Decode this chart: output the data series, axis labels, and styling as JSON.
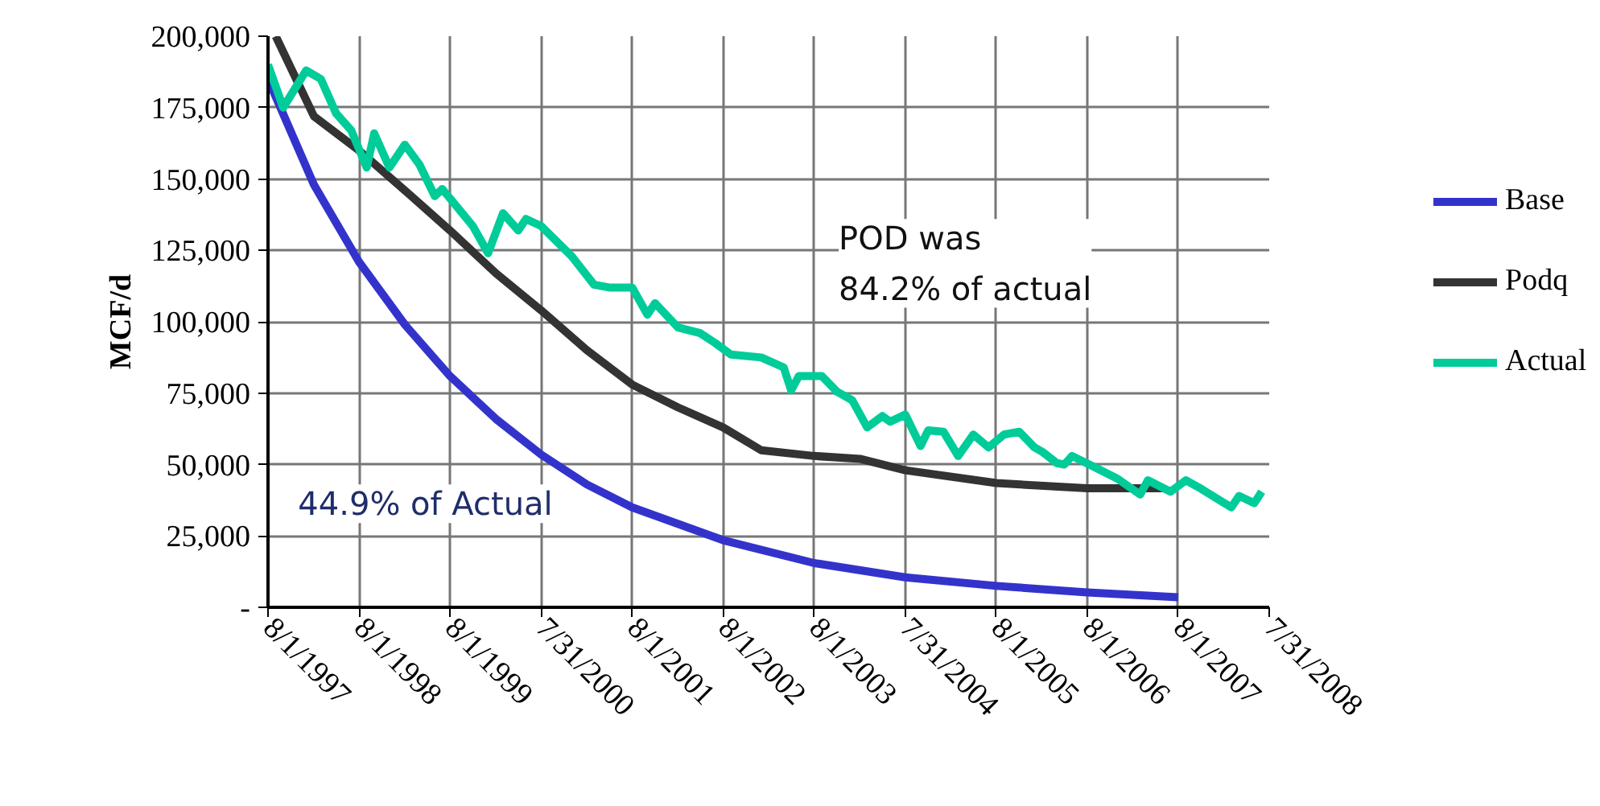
{
  "chart_data": {
    "type": "line",
    "ylabel": "MCF/d",
    "grid": true,
    "legend": "right",
    "line_style": "solid",
    "marker": "none",
    "xlim": [
      "1997-08-01",
      "2008-07-31"
    ],
    "xticks": [
      {
        "value": "1997-08-01",
        "label": "8/1/1997"
      },
      {
        "value": "1998-08-01",
        "label": "8/1/1998"
      },
      {
        "value": "1999-08-01",
        "label": "8/1/1999"
      },
      {
        "value": "2000-07-31",
        "label": "7/31/2000"
      },
      {
        "value": "2001-08-01",
        "label": "8/1/2001"
      },
      {
        "value": "2002-08-01",
        "label": "8/1/2002"
      },
      {
        "value": "2003-08-01",
        "label": "8/1/2003"
      },
      {
        "value": "2004-07-31",
        "label": "7/31/2004"
      },
      {
        "value": "2005-08-01",
        "label": "8/1/2005"
      },
      {
        "value": "2006-08-01",
        "label": "8/1/2006"
      },
      {
        "value": "2007-08-01",
        "label": "8/1/2007"
      },
      {
        "value": "2008-07-31",
        "label": "7/31/2008"
      }
    ],
    "ylim": [
      0,
      200000
    ],
    "yticks": [
      {
        "value": 0,
        "label": "-"
      },
      {
        "value": 25000,
        "label": "25,000"
      },
      {
        "value": 50000,
        "label": "50,000"
      },
      {
        "value": 75000,
        "label": "75,000"
      },
      {
        "value": 100000,
        "label": "100,000"
      },
      {
        "value": 125000,
        "label": "125,000"
      },
      {
        "value": 150000,
        "label": "150,000"
      },
      {
        "value": 175000,
        "label": "175,000"
      },
      {
        "value": 200000,
        "label": "200,000"
      }
    ],
    "series": [
      {
        "name": "Base",
        "color": "#3333cc",
        "x": [
          "1997-08",
          "1998-02",
          "1998-08",
          "1999-02",
          "1999-08",
          "2000-02",
          "2000-08",
          "2001-02",
          "2001-08",
          "2002-08",
          "2003-08",
          "2004-08",
          "2005-08",
          "2006-08",
          "2007-08"
        ],
        "values": [
          185000,
          148000,
          121000,
          99000,
          81000,
          66000,
          53500,
          43000,
          35000,
          23500,
          15500,
          10500,
          7500,
          5200,
          3500
        ]
      },
      {
        "name": "Podq",
        "color": "#333333",
        "x": [
          "1997-09",
          "1998-02",
          "1998-08",
          "1999-02",
          "1999-08",
          "2000-02",
          "2000-08",
          "2001-02",
          "2001-08",
          "2002-02",
          "2002-08",
          "2003-01",
          "2003-08",
          "2004-02",
          "2004-08",
          "2005-08",
          "2006-08",
          "2007-06"
        ],
        "values": [
          200000,
          172000,
          160000,
          146000,
          132000,
          117000,
          104000,
          90000,
          78000,
          70000,
          63000,
          55000,
          53000,
          52000,
          48000,
          43500,
          41700,
          41700
        ]
      },
      {
        "name": "Actual",
        "color": "#00cc99",
        "x": [
          "1997-08",
          "1997-10",
          "1998-01",
          "1998-03",
          "1998-05",
          "1998-07",
          "1998-09",
          "1998-10",
          "1998-12",
          "1999-02",
          "1999-04",
          "1999-06",
          "1999-07",
          "1999-11",
          "2000-01",
          "2000-03",
          "2000-05",
          "2000-06",
          "2000-08",
          "2000-12",
          "2001-03",
          "2001-05",
          "2001-08",
          "2001-10",
          "2001-11",
          "2002-02",
          "2002-05",
          "2002-07",
          "2002-09",
          "2003-01",
          "2003-04",
          "2003-05",
          "2003-06",
          "2003-09",
          "2003-11",
          "2004-01",
          "2004-03",
          "2004-05",
          "2004-06",
          "2004-08",
          "2004-10",
          "2004-11",
          "2005-01",
          "2005-03",
          "2005-05",
          "2005-07",
          "2005-09",
          "2005-11",
          "2006-01",
          "2006-02",
          "2006-04",
          "2006-05",
          "2006-06",
          "2006-09",
          "2006-12",
          "2007-03",
          "2007-04",
          "2007-07",
          "2007-09",
          "2007-11",
          "2008-03",
          "2008-04",
          "2008-06",
          "2008-07"
        ],
        "values": [
          190000,
          175000,
          188000,
          185000,
          173000,
          167000,
          154000,
          166000,
          154000,
          162000,
          155000,
          144000,
          146500,
          133500,
          124000,
          138000,
          132000,
          136000,
          133500,
          123000,
          113000,
          112000,
          112000,
          102500,
          106500,
          98000,
          96000,
          92500,
          88500,
          87500,
          84000,
          76000,
          81000,
          81000,
          75500,
          72500,
          63000,
          67000,
          65000,
          67500,
          56500,
          62000,
          61500,
          53000,
          60500,
          56000,
          60500,
          61500,
          56000,
          54500,
          50500,
          50000,
          53000,
          49000,
          45000,
          39500,
          44500,
          40500,
          44500,
          41500,
          35000,
          39000,
          36500,
          40500
        ]
      }
    ],
    "annotations": [
      "POD was\n84.2% of actual",
      "44.9% of Actual"
    ]
  }
}
